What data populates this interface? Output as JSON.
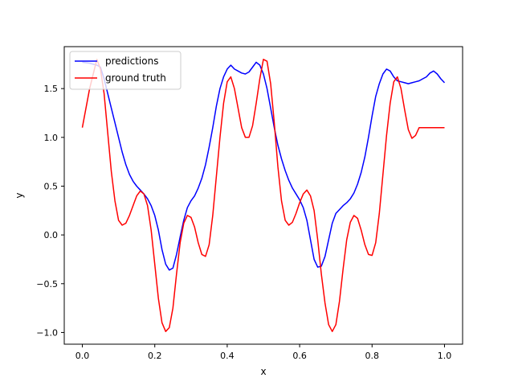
{
  "chart_data": {
    "type": "line",
    "title": "",
    "xlabel": "x",
    "ylabel": "y",
    "xlim": [
      -0.05,
      1.05
    ],
    "ylim": [
      -1.12,
      1.93
    ],
    "x_ticks": [
      "0.0",
      "0.2",
      "0.4",
      "0.6",
      "0.8",
      "1.0"
    ],
    "y_ticks": [
      "−1.0",
      "−0.5",
      "0.0",
      "0.5",
      "1.0",
      "1.5"
    ],
    "grid": false,
    "legend_position": "top-left",
    "series": [
      {
        "name": "predictions",
        "color": "#0000ff",
        "x": [
          0.0,
          0.02,
          0.04,
          0.05,
          0.06,
          0.07,
          0.08,
          0.09,
          0.1,
          0.11,
          0.12,
          0.13,
          0.14,
          0.15,
          0.16,
          0.17,
          0.18,
          0.19,
          0.2,
          0.21,
          0.22,
          0.23,
          0.24,
          0.25,
          0.26,
          0.27,
          0.28,
          0.29,
          0.3,
          0.31,
          0.32,
          0.33,
          0.34,
          0.35,
          0.36,
          0.37,
          0.38,
          0.39,
          0.4,
          0.41,
          0.42,
          0.43,
          0.44,
          0.45,
          0.46,
          0.47,
          0.48,
          0.49,
          0.5,
          0.51,
          0.52,
          0.53,
          0.54,
          0.55,
          0.56,
          0.57,
          0.58,
          0.59,
          0.6,
          0.61,
          0.62,
          0.63,
          0.64,
          0.65,
          0.66,
          0.67,
          0.68,
          0.69,
          0.7,
          0.71,
          0.72,
          0.73,
          0.74,
          0.75,
          0.76,
          0.77,
          0.78,
          0.79,
          0.8,
          0.81,
          0.82,
          0.83,
          0.84,
          0.85,
          0.86,
          0.87,
          0.88,
          0.89,
          0.9,
          0.91,
          0.92,
          0.93,
          0.94,
          0.95,
          0.96,
          0.97,
          0.98,
          0.99,
          1.0
        ],
        "y": [
          1.77,
          1.76,
          1.74,
          1.72,
          1.6,
          1.45,
          1.3,
          1.15,
          1.0,
          0.85,
          0.72,
          0.62,
          0.55,
          0.5,
          0.46,
          0.42,
          0.37,
          0.3,
          0.2,
          0.05,
          -0.15,
          -0.3,
          -0.36,
          -0.34,
          -0.2,
          -0.02,
          0.15,
          0.28,
          0.35,
          0.4,
          0.48,
          0.58,
          0.72,
          0.9,
          1.1,
          1.32,
          1.5,
          1.62,
          1.7,
          1.74,
          1.7,
          1.68,
          1.66,
          1.65,
          1.67,
          1.72,
          1.77,
          1.74,
          1.65,
          1.5,
          1.3,
          1.1,
          0.92,
          0.78,
          0.66,
          0.56,
          0.48,
          0.42,
          0.36,
          0.28,
          0.15,
          -0.05,
          -0.25,
          -0.33,
          -0.32,
          -0.22,
          -0.05,
          0.12,
          0.22,
          0.26,
          0.3,
          0.33,
          0.37,
          0.43,
          0.52,
          0.64,
          0.8,
          1.0,
          1.22,
          1.42,
          1.55,
          1.65,
          1.7,
          1.68,
          1.62,
          1.58,
          1.57,
          1.56,
          1.55,
          1.56,
          1.57,
          1.58,
          1.6,
          1.62,
          1.66,
          1.68,
          1.65,
          1.6,
          1.56
        ]
      },
      {
        "name": "ground truth",
        "color": "#ff0000",
        "x": [
          0.0,
          0.02,
          0.04,
          0.05,
          0.06,
          0.07,
          0.08,
          0.09,
          0.1,
          0.11,
          0.12,
          0.13,
          0.14,
          0.15,
          0.16,
          0.17,
          0.18,
          0.19,
          0.2,
          0.21,
          0.22,
          0.23,
          0.24,
          0.25,
          0.26,
          0.27,
          0.28,
          0.29,
          0.3,
          0.31,
          0.32,
          0.33,
          0.34,
          0.35,
          0.36,
          0.37,
          0.38,
          0.39,
          0.4,
          0.41,
          0.42,
          0.43,
          0.44,
          0.45,
          0.46,
          0.47,
          0.48,
          0.49,
          0.5,
          0.51,
          0.52,
          0.53,
          0.54,
          0.55,
          0.56,
          0.57,
          0.58,
          0.59,
          0.6,
          0.61,
          0.62,
          0.63,
          0.64,
          0.65,
          0.66,
          0.67,
          0.68,
          0.69,
          0.7,
          0.71,
          0.72,
          0.73,
          0.74,
          0.75,
          0.76,
          0.77,
          0.78,
          0.79,
          0.8,
          0.81,
          0.82,
          0.83,
          0.84,
          0.85,
          0.86,
          0.87,
          0.88,
          0.89,
          0.9,
          0.91,
          0.92,
          0.93,
          0.94,
          0.95,
          0.96,
          0.97,
          0.98,
          0.99,
          1.0
        ],
        "y": [
          1.1,
          1.5,
          1.8,
          1.7,
          1.45,
          1.05,
          0.65,
          0.35,
          0.15,
          0.1,
          0.12,
          0.2,
          0.3,
          0.4,
          0.45,
          0.42,
          0.3,
          0.05,
          -0.3,
          -0.65,
          -0.9,
          -0.99,
          -0.95,
          -0.75,
          -0.4,
          -0.08,
          0.12,
          0.2,
          0.18,
          0.08,
          -0.08,
          -0.2,
          -0.22,
          -0.1,
          0.2,
          0.6,
          1.0,
          1.35,
          1.57,
          1.62,
          1.5,
          1.3,
          1.1,
          1.0,
          1.0,
          1.12,
          1.35,
          1.6,
          1.8,
          1.78,
          1.55,
          1.15,
          0.7,
          0.35,
          0.15,
          0.1,
          0.13,
          0.22,
          0.33,
          0.42,
          0.46,
          0.4,
          0.25,
          -0.05,
          -0.4,
          -0.7,
          -0.92,
          -0.99,
          -0.92,
          -0.68,
          -0.35,
          -0.05,
          0.13,
          0.2,
          0.17,
          0.05,
          -0.1,
          -0.2,
          -0.21,
          -0.08,
          0.22,
          0.62,
          1.02,
          1.35,
          1.57,
          1.62,
          1.5,
          1.28,
          1.08,
          0.99,
          1.02,
          1.1,
          1.1,
          1.1,
          1.1,
          1.1,
          1.1,
          1.1,
          1.1
        ]
      }
    ]
  }
}
